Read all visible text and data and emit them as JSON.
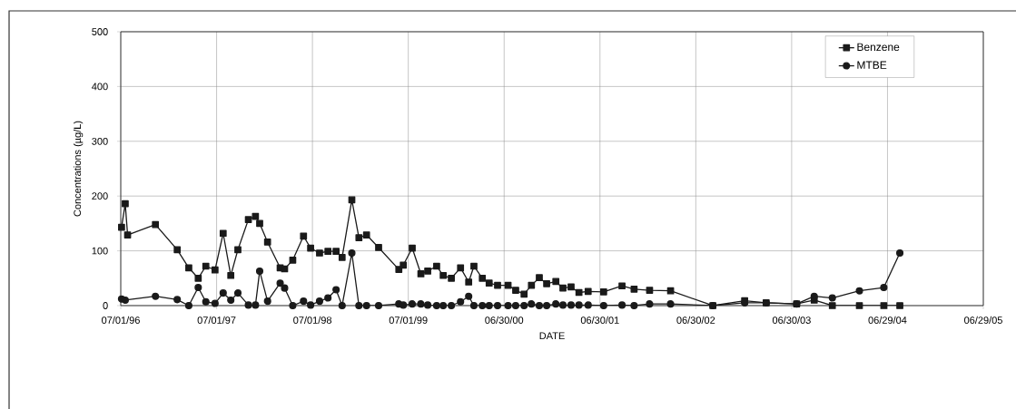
{
  "chart_data": {
    "type": "line",
    "xlabel": "DATE",
    "ylabel": "Concentrations (µg/L)",
    "xlim": [
      "1996-07-01",
      "2005-06-29"
    ],
    "ylim": [
      0,
      500
    ],
    "xticks": [
      {
        "value": "1996-07-01",
        "label": "07/01/96"
      },
      {
        "value": "1997-07-01",
        "label": "07/01/97"
      },
      {
        "value": "1998-07-01",
        "label": "07/01/98"
      },
      {
        "value": "1999-07-01",
        "label": "07/01/99"
      },
      {
        "value": "2000-06-30",
        "label": "06/30/00"
      },
      {
        "value": "2001-06-30",
        "label": "06/30/01"
      },
      {
        "value": "2002-06-30",
        "label": "06/30/02"
      },
      {
        "value": "2003-06-30",
        "label": "06/30/03"
      },
      {
        "value": "2004-06-29",
        "label": "06/29/04"
      },
      {
        "value": "2005-06-29",
        "label": "06/29/05"
      }
    ],
    "yticks": [
      0,
      100,
      200,
      300,
      400,
      500
    ],
    "grid": true,
    "legend": "top right",
    "line_style": "solid",
    "series": [
      {
        "name": "Benzene",
        "color": "#1a1a1a",
        "marker": "square",
        "x": [
          "1996-07-04",
          "1996-07-18",
          "1996-07-27",
          "1996-11-10",
          "1997-02-01",
          "1997-03-17",
          "1997-04-22",
          "1997-05-21",
          "1997-06-25",
          "1997-07-26",
          "1997-08-24",
          "1997-09-20",
          "1997-10-30",
          "1997-11-26",
          "1997-12-12",
          "1998-01-11",
          "1998-02-28",
          "1998-03-17",
          "1998-04-17",
          "1998-05-28",
          "1998-06-24",
          "1998-07-28",
          "1998-08-29",
          "1998-09-29",
          "1998-10-22",
          "1998-11-28",
          "1998-12-25",
          "1999-01-23",
          "1999-03-10",
          "1999-05-26",
          "1999-06-12",
          "1999-07-16",
          "1999-08-18",
          "1999-09-13",
          "1999-10-17",
          "1999-11-11",
          "1999-12-12",
          "2000-01-16",
          "2000-02-16",
          "2000-03-07",
          "2000-04-08",
          "2000-05-04",
          "2000-06-05",
          "2000-07-15",
          "2000-08-13",
          "2000-09-14",
          "2000-10-12",
          "2000-11-11",
          "2000-12-09",
          "2001-01-13",
          "2001-02-09",
          "2001-03-12",
          "2001-04-11",
          "2001-05-16",
          "2001-07-14",
          "2001-09-22",
          "2001-11-07",
          "2002-01-05",
          "2002-03-26",
          "2002-09-03",
          "2003-01-02",
          "2003-03-25",
          "2003-07-19",
          "2003-09-24",
          "2003-12-02",
          "2004-03-14",
          "2004-06-15",
          "2004-08-15"
        ],
        "values": [
          143,
          186,
          129,
          148,
          102,
          69,
          50,
          72,
          65,
          132,
          55,
          102,
          157,
          163,
          150,
          116,
          69,
          67,
          83,
          127,
          105,
          96,
          99,
          99,
          88,
          193,
          124,
          129,
          106,
          66,
          74,
          105,
          58,
          63,
          72,
          55,
          50,
          69,
          43,
          72,
          50,
          41,
          37,
          37,
          28,
          21,
          37,
          51,
          40,
          44,
          32,
          34,
          24,
          26,
          25,
          36,
          30,
          28,
          27,
          0,
          9,
          5,
          3,
          10,
          0,
          0,
          0,
          0
        ]
      },
      {
        "name": "MTBE",
        "color": "#1a1a1a",
        "marker": "circle",
        "x": [
          "1996-07-04",
          "1996-07-18",
          "1996-11-10",
          "1997-02-01",
          "1997-03-17",
          "1997-04-22",
          "1997-05-21",
          "1997-06-25",
          "1997-07-26",
          "1997-08-24",
          "1997-09-20",
          "1997-10-30",
          "1997-11-26",
          "1997-12-12",
          "1998-01-11",
          "1998-02-28",
          "1998-03-17",
          "1998-04-17",
          "1998-05-28",
          "1998-06-24",
          "1998-07-28",
          "1998-08-29",
          "1998-09-29",
          "1998-10-22",
          "1998-11-28",
          "1998-12-25",
          "1999-01-23",
          "1999-03-10",
          "1999-05-26",
          "1999-06-12",
          "1999-07-16",
          "1999-08-18",
          "1999-09-13",
          "1999-10-17",
          "1999-11-11",
          "1999-12-12",
          "2000-01-16",
          "2000-02-16",
          "2000-03-07",
          "2000-04-08",
          "2000-05-04",
          "2000-06-05",
          "2000-07-15",
          "2000-08-13",
          "2000-09-14",
          "2000-10-12",
          "2000-11-11",
          "2000-12-09",
          "2001-01-13",
          "2001-02-09",
          "2001-03-12",
          "2001-04-11",
          "2001-05-16",
          "2001-07-14",
          "2001-09-22",
          "2001-11-07",
          "2002-01-05",
          "2002-03-26",
          "2002-09-03",
          "2003-01-02",
          "2003-03-25",
          "2003-07-19",
          "2003-09-24",
          "2003-12-02",
          "2004-03-14",
          "2004-06-15",
          "2004-08-15"
        ],
        "values": [
          12,
          10,
          17,
          11,
          0,
          33,
          7,
          4,
          23,
          10,
          23,
          1,
          1,
          63,
          8,
          41,
          32,
          0,
          8,
          1,
          8,
          14,
          29,
          0,
          96,
          0,
          0,
          0,
          3,
          1,
          3,
          3,
          1,
          0,
          0,
          0,
          7,
          17,
          0,
          0,
          0,
          0,
          0,
          0,
          0,
          3,
          0,
          0,
          3,
          1,
          1,
          1,
          1,
          0,
          1,
          0,
          3,
          3,
          0,
          5,
          5,
          3,
          17,
          14,
          27,
          33,
          96
        ]
      }
    ]
  }
}
